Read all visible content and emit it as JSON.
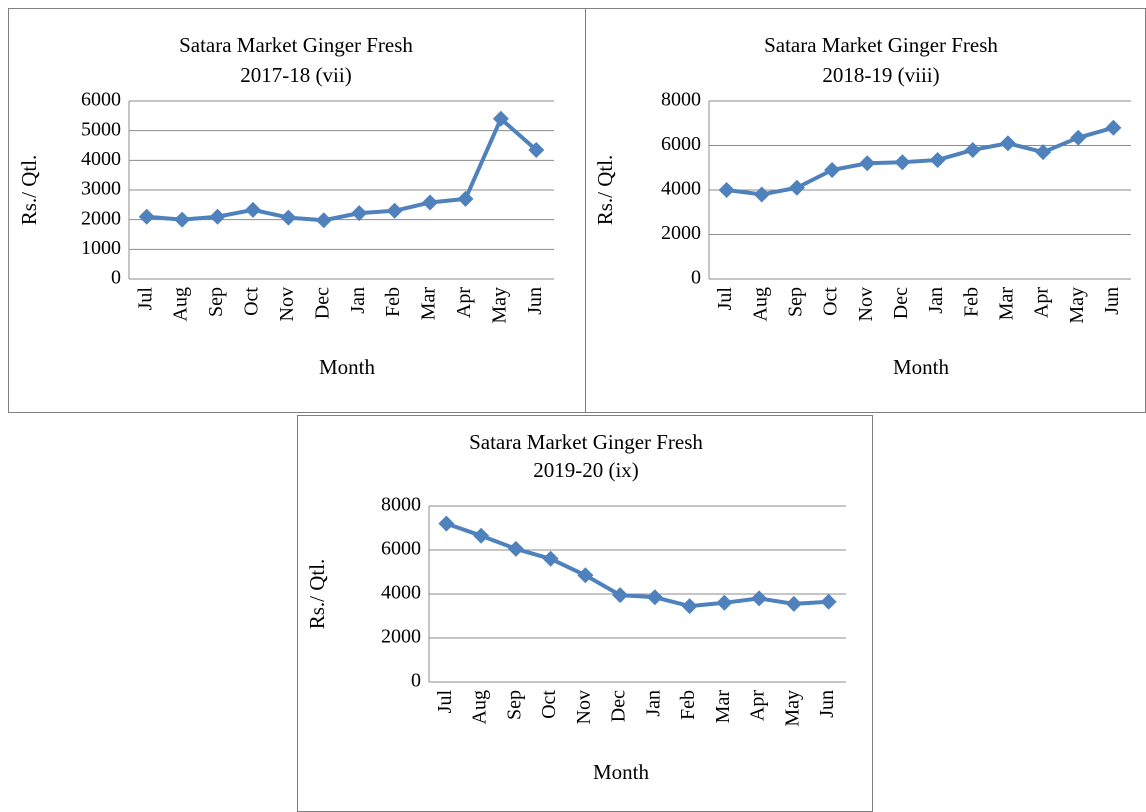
{
  "chart_data": [
    {
      "type": "line",
      "title": "Satara Market Ginger Fresh",
      "subtitle": "2017-18 (vii)",
      "x_label": "Month",
      "y_label": "Rs./ Qtl.",
      "categories": [
        "Jul",
        "Aug",
        "Sep",
        "Oct",
        "Nov",
        "Dec",
        "Jan",
        "Feb",
        "Mar",
        "Apr",
        "May",
        "Jun"
      ],
      "series": [
        {
          "color": "#4f81bd",
          "values": [
            2100,
            2000,
            2100,
            2330,
            2070,
            1980,
            2220,
            2300,
            2580,
            2700,
            5400,
            4350
          ]
        }
      ],
      "ylim": [
        0,
        6000
      ],
      "yticks": [
        0,
        1000,
        2000,
        3000,
        4000,
        5000,
        6000
      ],
      "grid": true
    },
    {
      "type": "line",
      "title": "Satara Market Ginger Fresh",
      "subtitle": "2018-19 (viii)",
      "x_label": "Month",
      "y_label": "Rs./ Qtl.",
      "categories": [
        "Jul",
        "Aug",
        "Sep",
        "Oct",
        "Nov",
        "Dec",
        "Jan",
        "Feb",
        "Mar",
        "Apr",
        "May",
        "Jun"
      ],
      "series": [
        {
          "color": "#4f81bd",
          "values": [
            4000,
            3800,
            4100,
            4900,
            5200,
            5250,
            5350,
            5800,
            6100,
            5700,
            6350,
            6800
          ]
        }
      ],
      "ylim": [
        0,
        8000
      ],
      "yticks": [
        0,
        2000,
        4000,
        6000,
        8000
      ],
      "grid": true
    },
    {
      "type": "line",
      "title": "Satara Market Ginger Fresh",
      "subtitle": "2019-20 (ix)",
      "x_label": "Month",
      "y_label": "Rs./ Qtl.",
      "categories": [
        "Jul",
        "Aug",
        "Sep",
        "Oct",
        "Nov",
        "Dec",
        "Jan",
        "Feb",
        "Mar",
        "Apr",
        "May",
        "Jun"
      ],
      "series": [
        {
          "color": "#4f81bd",
          "values": [
            7200,
            6650,
            6050,
            5600,
            4850,
            3950,
            3850,
            3450,
            3600,
            3800,
            3550,
            3650
          ]
        }
      ],
      "ylim": [
        0,
        8000
      ],
      "yticks": [
        0,
        2000,
        4000,
        6000,
        8000
      ],
      "grid": true
    }
  ]
}
